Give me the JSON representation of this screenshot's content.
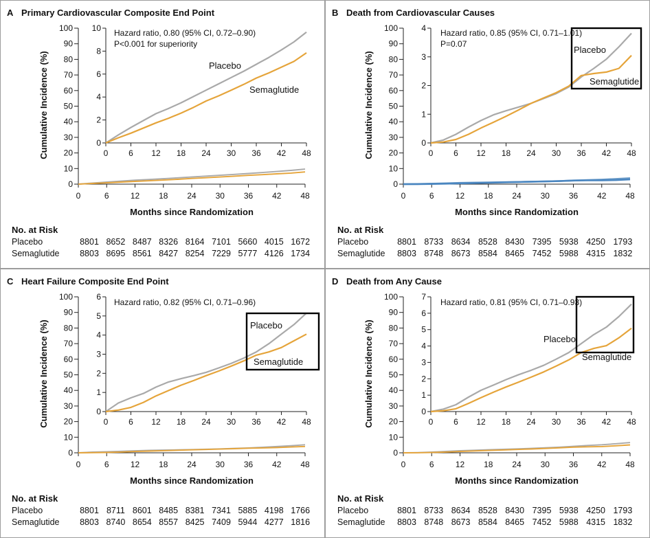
{
  "chart_data": [
    {
      "type": "line",
      "panel": "A",
      "title": "Primary Cardiovascular Composite End Point",
      "xlabel": "Months since Randomization",
      "ylabel": "Cumulative Incidence (%)",
      "xlim": [
        0,
        48
      ],
      "xticks": [
        0,
        6,
        12,
        18,
        24,
        30,
        36,
        42,
        48
      ],
      "ylim": [
        0,
        100
      ],
      "yticks": [
        0,
        10,
        20,
        30,
        40,
        50,
        60,
        70,
        80,
        90,
        100
      ],
      "inset": {
        "ylim": [
          0,
          10
        ],
        "yticks": [
          0,
          2,
          4,
          6,
          8,
          10
        ]
      },
      "annotations": [
        "Hazard ratio, 0.80 (95% CI, 0.72–0.90)",
        "P<0.001 for superiority"
      ],
      "x": [
        0,
        3,
        6,
        9,
        12,
        15,
        18,
        21,
        24,
        27,
        30,
        33,
        36,
        39,
        42,
        45,
        48
      ],
      "series": [
        {
          "name": "Placebo",
          "color": "#a9a9a9",
          "values": [
            0,
            0.7,
            1.35,
            1.95,
            2.55,
            3.0,
            3.5,
            4.05,
            4.6,
            5.15,
            5.7,
            6.25,
            6.85,
            7.45,
            8.1,
            8.8,
            9.65
          ]
        },
        {
          "name": "Semaglutide",
          "color": "#e5a43a",
          "values": [
            0,
            0.45,
            0.85,
            1.3,
            1.75,
            2.15,
            2.6,
            3.1,
            3.65,
            4.1,
            4.6,
            5.1,
            5.65,
            6.1,
            6.6,
            7.1,
            7.85
          ]
        }
      ],
      "risk_table": {
        "title": "No. at Risk",
        "rows": [
          {
            "label": "Placebo",
            "values": [
              8801,
              8652,
              8487,
              8326,
              8164,
              7101,
              5660,
              4015,
              1672
            ]
          },
          {
            "label": "Semaglutide",
            "values": [
              8803,
              8695,
              8561,
              8427,
              8254,
              7229,
              5777,
              4126,
              1734
            ]
          }
        ]
      }
    },
    {
      "type": "line",
      "panel": "B",
      "title": "Death from Cardiovascular Causes",
      "xlabel": "Months since Randomization",
      "ylabel": "Cumulative Incidence (%)",
      "xlim": [
        0,
        48
      ],
      "xticks": [
        0,
        6,
        12,
        18,
        24,
        30,
        36,
        42,
        48
      ],
      "ylim": [
        0,
        100
      ],
      "yticks": [
        0,
        10,
        20,
        30,
        40,
        50,
        60,
        70,
        80,
        90,
        100
      ],
      "inset": {
        "ylim": [
          0,
          4
        ],
        "yticks": [
          0,
          1,
          2,
          3,
          4
        ]
      },
      "annotations": [
        "Hazard ratio, 0.85 (95% CI, 0.71–1.01)",
        "P=0.07"
      ],
      "main_line_colors": [
        "#6d9cc8",
        "#4a86c0"
      ],
      "x": [
        0,
        3,
        6,
        9,
        12,
        15,
        18,
        21,
        24,
        27,
        30,
        33,
        36,
        39,
        42,
        45,
        48
      ],
      "series": [
        {
          "name": "Placebo",
          "color": "#a9a9a9",
          "values": [
            0,
            0.1,
            0.3,
            0.55,
            0.78,
            0.98,
            1.12,
            1.25,
            1.38,
            1.55,
            1.72,
            1.95,
            2.3,
            2.6,
            2.92,
            3.35,
            3.82
          ]
        },
        {
          "name": "Semaglutide",
          "color": "#e5a43a",
          "values": [
            0,
            0.03,
            0.12,
            0.3,
            0.52,
            0.72,
            0.93,
            1.15,
            1.38,
            1.57,
            1.75,
            1.98,
            2.35,
            2.42,
            2.47,
            2.6,
            3.05
          ]
        }
      ],
      "risk_table": {
        "title": "No. at Risk",
        "rows": [
          {
            "label": "Placebo",
            "values": [
              8801,
              8733,
              8634,
              8528,
              8430,
              7395,
              5938,
              4250,
              1793
            ]
          },
          {
            "label": "Semaglutide",
            "values": [
              8803,
              8748,
              8673,
              8584,
              8465,
              7452,
              5988,
              4315,
              1832
            ]
          }
        ]
      }
    },
    {
      "type": "line",
      "panel": "C",
      "title": "Heart Failure Composite End Point",
      "xlabel": "Months since Randomization",
      "ylabel": "Cumulative Incidence (%)",
      "xlim": [
        0,
        48
      ],
      "xticks": [
        0,
        6,
        12,
        18,
        24,
        30,
        36,
        42,
        48
      ],
      "ylim": [
        0,
        100
      ],
      "yticks": [
        0,
        10,
        20,
        30,
        40,
        50,
        60,
        70,
        80,
        90,
        100
      ],
      "inset": {
        "ylim": [
          0,
          6
        ],
        "yticks": [
          0,
          1,
          2,
          3,
          4,
          5,
          6
        ]
      },
      "annotations": [
        "Hazard ratio, 0.82 (95% CI, 0.71–0.96)"
      ],
      "x": [
        0,
        3,
        6,
        9,
        12,
        15,
        18,
        21,
        24,
        27,
        30,
        33,
        36,
        39,
        42,
        45,
        48
      ],
      "series": [
        {
          "name": "Placebo",
          "color": "#a9a9a9",
          "values": [
            0,
            0.45,
            0.72,
            0.95,
            1.28,
            1.55,
            1.72,
            1.88,
            2.05,
            2.28,
            2.52,
            2.8,
            3.12,
            3.55,
            4.05,
            4.55,
            5.15
          ]
        },
        {
          "name": "Semaglutide",
          "color": "#e5a43a",
          "values": [
            0,
            0.08,
            0.22,
            0.48,
            0.82,
            1.1,
            1.38,
            1.62,
            1.88,
            2.12,
            2.38,
            2.65,
            2.95,
            3.12,
            3.35,
            3.7,
            4.05
          ]
        }
      ],
      "risk_table": {
        "title": "No. at Risk",
        "rows": [
          {
            "label": "Placebo",
            "values": [
              8801,
              8711,
              8601,
              8485,
              8381,
              7341,
              5885,
              4198,
              1766
            ]
          },
          {
            "label": "Semaglutide",
            "values": [
              8803,
              8740,
              8654,
              8557,
              8425,
              7409,
              5944,
              4277,
              1816
            ]
          }
        ]
      }
    },
    {
      "type": "line",
      "panel": "D",
      "title": "Death from Any Cause",
      "xlabel": "Months since Randomization",
      "ylabel": "Cumulative Incidence (%)",
      "xlim": [
        0,
        48
      ],
      "xticks": [
        0,
        6,
        12,
        18,
        24,
        30,
        36,
        42,
        48
      ],
      "ylim": [
        0,
        100
      ],
      "yticks": [
        0,
        10,
        20,
        30,
        40,
        50,
        60,
        70,
        80,
        90,
        100
      ],
      "inset": {
        "ylim": [
          0,
          7
        ],
        "yticks": [
          0,
          1,
          2,
          3,
          4,
          5,
          6,
          7
        ]
      },
      "annotations": [
        "Hazard ratio, 0.81 (95% CI, 0.71–0.93)"
      ],
      "x": [
        0,
        3,
        6,
        9,
        12,
        15,
        18,
        21,
        24,
        27,
        30,
        33,
        36,
        39,
        42,
        45,
        48
      ],
      "series": [
        {
          "name": "Placebo",
          "color": "#a9a9a9",
          "values": [
            0,
            0.15,
            0.42,
            0.88,
            1.3,
            1.62,
            1.95,
            2.25,
            2.52,
            2.82,
            3.2,
            3.6,
            4.15,
            4.7,
            5.15,
            5.8,
            6.55
          ]
        },
        {
          "name": "Semaglutide",
          "color": "#e5a43a",
          "values": [
            0,
            0.05,
            0.17,
            0.5,
            0.85,
            1.18,
            1.5,
            1.8,
            2.1,
            2.42,
            2.78,
            3.15,
            3.6,
            3.85,
            4.02,
            4.5,
            5.08
          ]
        }
      ],
      "risk_table": {
        "title": "No. at Risk",
        "rows": [
          {
            "label": "Placebo",
            "values": [
              8801,
              8733,
              8634,
              8528,
              8430,
              7395,
              5938,
              4250,
              1793
            ]
          },
          {
            "label": "Semaglutide",
            "values": [
              8803,
              8748,
              8673,
              8584,
              8465,
              7452,
              5988,
              4315,
              1832
            ]
          }
        ]
      }
    }
  ]
}
